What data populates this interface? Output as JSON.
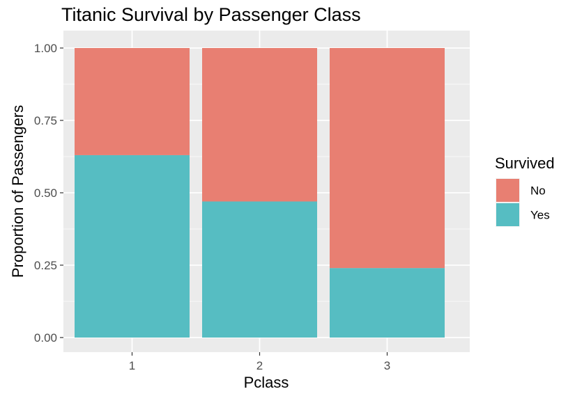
{
  "chart_data": {
    "type": "bar",
    "stacked": true,
    "title": "Titanic Survival by Passenger Class",
    "xlabel": "Pclass",
    "ylabel": "Proportion of Passengers",
    "categories": [
      "1",
      "2",
      "3"
    ],
    "series": [
      {
        "name": "No",
        "values": [
          0.37,
          0.53,
          0.76
        ],
        "color": "#E87F72"
      },
      {
        "name": "Yes",
        "values": [
          0.63,
          0.47,
          0.24
        ],
        "color": "#56BDC2"
      }
    ],
    "stack_order_bottom_to_top": [
      "Yes",
      "No"
    ],
    "ylim": [
      0,
      1
    ],
    "yticks": [
      "0.00",
      "0.25",
      "0.50",
      "0.75",
      "1.00"
    ],
    "grid": true,
    "panel_background": "#EBEBEB",
    "legend": {
      "title": "Survived",
      "placement": "right",
      "entries": [
        "No",
        "Yes"
      ]
    }
  }
}
